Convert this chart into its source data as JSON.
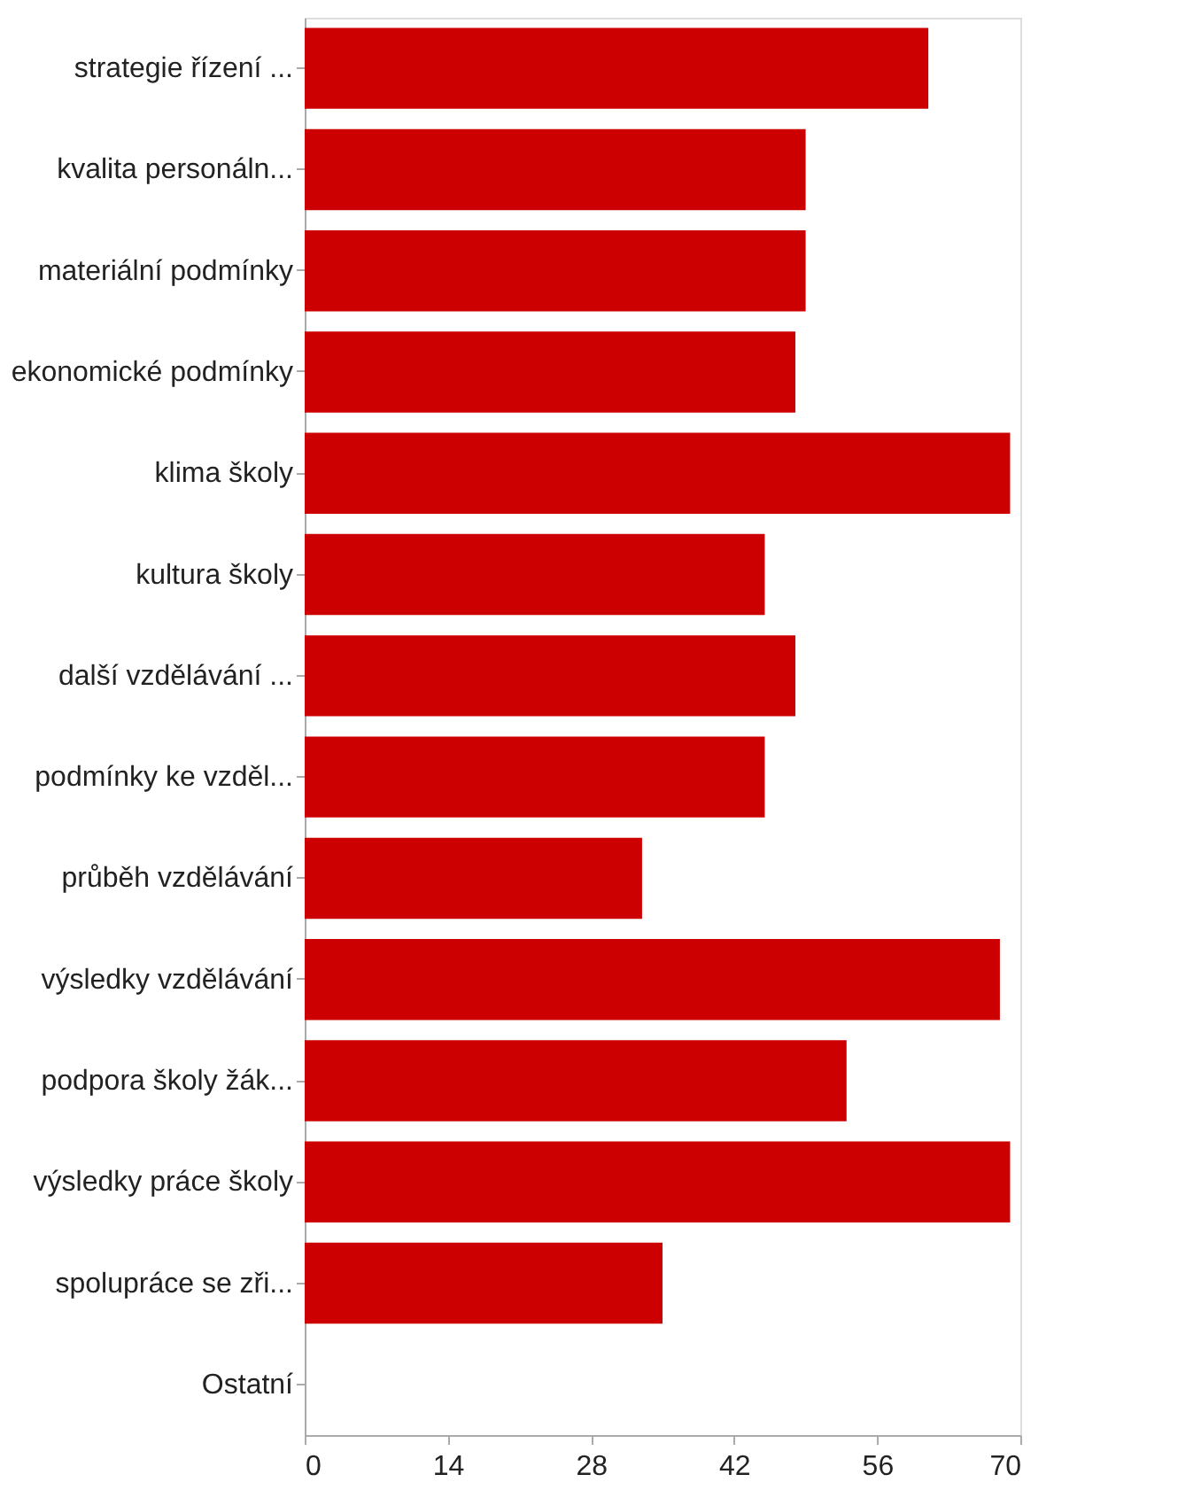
{
  "chart_data": {
    "type": "bar",
    "orientation": "horizontal",
    "categories": [
      "strategie řízení ...",
      "kvalita personáln...",
      "materiální podmínky",
      "ekonomické podmínky",
      "klima školy",
      "kultura školy",
      "další vzdělávání ...",
      "podmínky ke vzděl...",
      "průběh vzdělávání",
      "výsledky vzdělávání",
      "podpora školy žák...",
      "výsledky práce školy",
      "spolupráce se zři...",
      "Ostatní"
    ],
    "values": [
      61,
      49,
      49,
      48,
      69,
      45,
      48,
      45,
      33,
      68,
      53,
      69,
      35,
      0
    ],
    "color": "#cc0000",
    "xlim": [
      0,
      70
    ],
    "xticks": [
      0,
      14,
      28,
      42,
      56,
      70
    ],
    "grid": false
  }
}
